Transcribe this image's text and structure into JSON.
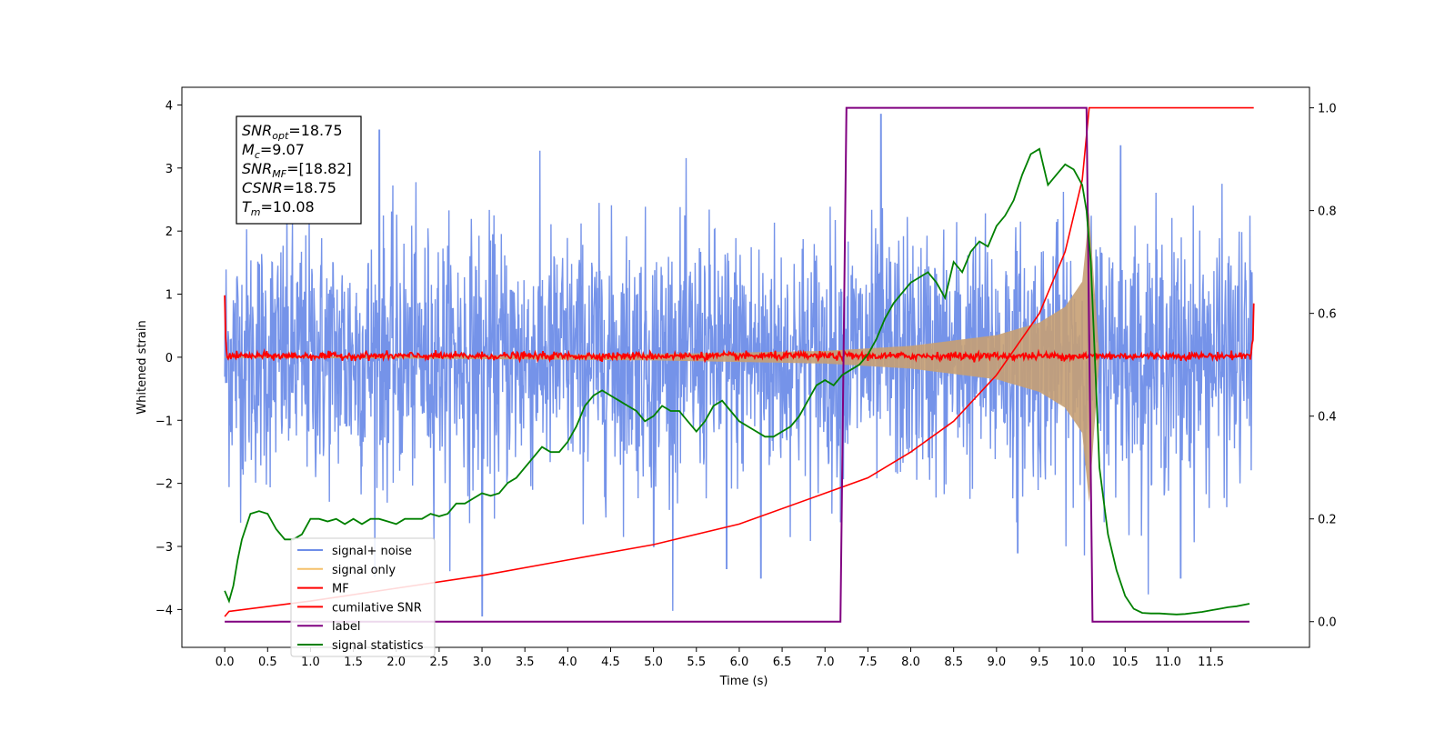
{
  "chart_data": {
    "type": "line",
    "xlabel": "Time (s)",
    "ylabel": "Whitened strain",
    "xlim": [
      -0.5,
      12.65
    ],
    "ylim": [
      -4.6,
      4.28
    ],
    "y2lim": [
      -0.05,
      1.04
    ],
    "x_ticks": [
      "0.0",
      "0.5",
      "1.0",
      "1.5",
      "2.0",
      "2.5",
      "3.0",
      "3.5",
      "4.0",
      "4.5",
      "5.0",
      "5.5",
      "6.0",
      "6.5",
      "7.0",
      "7.5",
      "8.0",
      "8.5",
      "9.0",
      "9.5",
      "10.0",
      "10.5",
      "11.0",
      "11.5"
    ],
    "y_ticks": [
      "4",
      "3",
      "2",
      "1",
      "0",
      "−1",
      "−2",
      "−3",
      "−4"
    ],
    "y2_ticks": [
      "1.0",
      "0.8",
      "0.6",
      "0.4",
      "0.2",
      "0.0"
    ],
    "annotation": {
      "snr_opt": {
        "sym": "SNR",
        "sub": "opt",
        "val": "=18.75"
      },
      "mc": {
        "sym": "M",
        "sub": "c",
        "val": "=9.07"
      },
      "snr_mf": {
        "sym": "SNR",
        "sub": "MF",
        "val": "=[18.82]"
      },
      "csnr": {
        "sym": "CSNR",
        "sub": "",
        "val": "=18.75"
      },
      "tm": {
        "sym": "T",
        "sub": "m",
        "val": "=10.08"
      }
    },
    "legend": {
      "position": "lower left",
      "entries": [
        {
          "label": "signal+ noise",
          "color": "#6e8de8"
        },
        {
          "label": "signal only",
          "color": "#f5c16b"
        },
        {
          "label": "MF",
          "color": "#ff0000"
        },
        {
          "label": "cumilative SNR",
          "color": "#ff0000"
        },
        {
          "label": "label",
          "color": "#800080"
        },
        {
          "label": "signal statistics",
          "color": "#008000"
        }
      ]
    },
    "series": [
      {
        "name": "signal+ noise",
        "axis": "left",
        "color": "#6e8de8",
        "sample_interval": 0.005,
        "approx_std": 1.0,
        "x_range": [
          0,
          11.99
        ]
      },
      {
        "name": "signal only",
        "axis": "left",
        "color": "#c6a074",
        "envelope": {
          "t": [
            0,
            2,
            5,
            7,
            8,
            9,
            9.5,
            9.8,
            10.0,
            10.08,
            10.2
          ],
          "amp": [
            0.01,
            0.02,
            0.05,
            0.1,
            0.18,
            0.35,
            0.55,
            0.8,
            1.2,
            2.3,
            0.0
          ]
        }
      },
      {
        "name": "MF",
        "axis": "left",
        "color": "#ff0000",
        "x": [
          0,
          0.01,
          0.03,
          11.96,
          11.99,
          12.0
        ],
        "y": [
          1.0,
          0.3,
          0.02,
          0.02,
          0.3,
          0.9
        ],
        "noise_std": 0.03
      },
      {
        "name": "cumilative SNR",
        "axis": "right",
        "color": "#ff0000",
        "x": [
          0,
          0.05,
          1,
          2,
          3,
          4,
          5,
          6,
          7,
          7.5,
          8,
          8.5,
          9,
          9.5,
          9.8,
          10.0,
          10.08,
          10.12,
          12.0
        ],
        "y": [
          0.01,
          0.02,
          0.04,
          0.065,
          0.09,
          0.12,
          0.15,
          0.19,
          0.25,
          0.28,
          0.33,
          0.39,
          0.48,
          0.6,
          0.72,
          0.86,
          1.0,
          1.0,
          1.0
        ]
      },
      {
        "name": "label",
        "axis": "right",
        "color": "#800080",
        "x": [
          0,
          7.18,
          7.25,
          10.05,
          10.12,
          11.95
        ],
        "y": [
          0,
          0,
          1,
          1,
          0,
          0
        ]
      },
      {
        "name": "signal statistics",
        "axis": "right",
        "color": "#008000",
        "x": [
          0,
          0.05,
          0.1,
          0.15,
          0.2,
          0.3,
          0.4,
          0.5,
          0.6,
          0.7,
          0.8,
          0.9,
          1.0,
          1.1,
          1.2,
          1.3,
          1.4,
          1.5,
          1.6,
          1.7,
          1.8,
          1.9,
          2.0,
          2.1,
          2.2,
          2.3,
          2.4,
          2.5,
          2.6,
          2.7,
          2.8,
          2.9,
          3.0,
          3.1,
          3.2,
          3.3,
          3.4,
          3.5,
          3.6,
          3.7,
          3.8,
          3.9,
          4.0,
          4.1,
          4.2,
          4.3,
          4.4,
          4.5,
          4.6,
          4.7,
          4.8,
          4.9,
          5.0,
          5.1,
          5.2,
          5.3,
          5.4,
          5.5,
          5.6,
          5.7,
          5.8,
          5.9,
          6.0,
          6.1,
          6.2,
          6.3,
          6.4,
          6.5,
          6.6,
          6.7,
          6.8,
          6.9,
          7.0,
          7.1,
          7.2,
          7.3,
          7.4,
          7.5,
          7.6,
          7.7,
          7.8,
          7.9,
          8.0,
          8.1,
          8.2,
          8.3,
          8.4,
          8.5,
          8.6,
          8.7,
          8.8,
          8.9,
          9.0,
          9.1,
          9.2,
          9.3,
          9.4,
          9.5,
          9.6,
          9.7,
          9.8,
          9.9,
          10.0,
          10.05,
          10.1,
          10.15,
          10.2,
          10.3,
          10.4,
          10.5,
          10.6,
          10.7,
          10.8,
          10.9,
          11.0,
          11.1,
          11.2,
          11.3,
          11.4,
          11.5,
          11.6,
          11.7,
          11.8,
          11.95
        ],
        "y": [
          0.06,
          0.04,
          0.07,
          0.12,
          0.16,
          0.21,
          0.215,
          0.21,
          0.18,
          0.16,
          0.16,
          0.17,
          0.2,
          0.2,
          0.195,
          0.2,
          0.19,
          0.2,
          0.19,
          0.2,
          0.2,
          0.195,
          0.19,
          0.2,
          0.2,
          0.2,
          0.21,
          0.205,
          0.21,
          0.23,
          0.23,
          0.24,
          0.25,
          0.245,
          0.25,
          0.27,
          0.28,
          0.3,
          0.32,
          0.34,
          0.33,
          0.33,
          0.35,
          0.38,
          0.42,
          0.44,
          0.45,
          0.44,
          0.43,
          0.42,
          0.41,
          0.39,
          0.4,
          0.42,
          0.41,
          0.41,
          0.39,
          0.37,
          0.39,
          0.42,
          0.43,
          0.41,
          0.39,
          0.38,
          0.37,
          0.36,
          0.36,
          0.37,
          0.38,
          0.4,
          0.43,
          0.46,
          0.47,
          0.46,
          0.48,
          0.49,
          0.5,
          0.52,
          0.55,
          0.59,
          0.62,
          0.64,
          0.66,
          0.67,
          0.68,
          0.66,
          0.63,
          0.7,
          0.68,
          0.72,
          0.74,
          0.73,
          0.77,
          0.79,
          0.82,
          0.87,
          0.91,
          0.92,
          0.85,
          0.87,
          0.89,
          0.88,
          0.85,
          0.8,
          0.7,
          0.5,
          0.3,
          0.17,
          0.1,
          0.05,
          0.025,
          0.017,
          0.016,
          0.016,
          0.015,
          0.014,
          0.015,
          0.017,
          0.019,
          0.022,
          0.025,
          0.028,
          0.03,
          0.035
        ]
      }
    ]
  }
}
